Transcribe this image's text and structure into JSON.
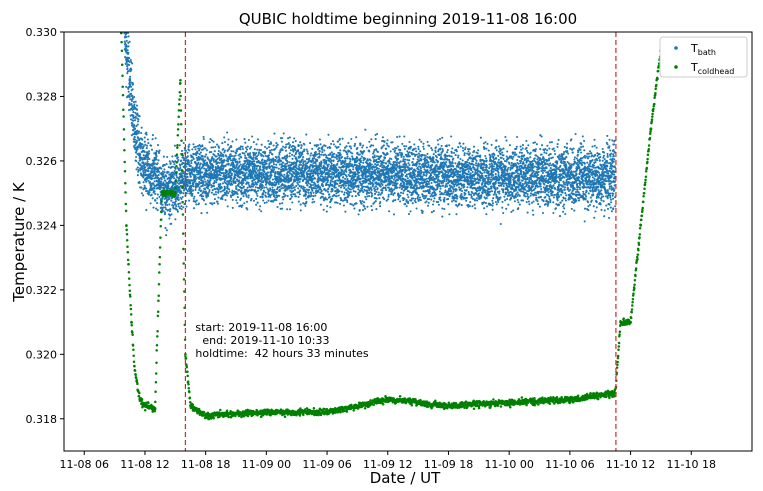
{
  "chart_data": {
    "type": "scatter",
    "title": "QUBIC holdtime beginning 2019-11-08 16:00",
    "xlabel": "Date / UT",
    "ylabel": "Temperature / K",
    "x_axis": {
      "type": "date",
      "min": "2019-11-08T04:00",
      "max": "2019-11-11T00:00",
      "ticks": [
        "2019-11-08T06:00",
        "2019-11-08T12:00",
        "2019-11-08T18:00",
        "2019-11-09T00:00",
        "2019-11-09T06:00",
        "2019-11-09T12:00",
        "2019-11-09T18:00",
        "2019-11-10T00:00",
        "2019-11-10T06:00",
        "2019-11-10T12:00",
        "2019-11-10T18:00"
      ],
      "tick_labels": [
        "11-08 06",
        "11-08 12",
        "11-08 18",
        "11-09 00",
        "11-09 06",
        "11-09 12",
        "11-09 18",
        "11-10 00",
        "11-10 06",
        "11-10 12",
        "11-10 18"
      ]
    },
    "y_axis": {
      "min": 0.317,
      "max": 0.33,
      "ticks": [
        0.318,
        0.32,
        0.322,
        0.324,
        0.326,
        0.328,
        0.33
      ],
      "tick_labels": [
        "0.318",
        "0.320",
        "0.322",
        "0.324",
        "0.326",
        "0.328",
        "0.330"
      ]
    },
    "grid": false,
    "legend": {
      "placement": "top-right"
    },
    "series": [
      {
        "name": "T",
        "name_sub": "bath",
        "color": "#1f77b4",
        "points": [
          [
            "2019-11-08T10:00",
            0.33
          ],
          [
            "2019-11-08T10:30",
            0.3285
          ],
          [
            "2019-11-08T11:00",
            0.327
          ],
          [
            "2019-11-08T11:30",
            0.3262
          ],
          [
            "2019-11-08T12:00",
            0.3258
          ],
          [
            "2019-11-08T13:00",
            0.3256
          ],
          [
            "2019-11-08T14:00",
            0.325
          ],
          [
            "2019-11-08T15:00",
            0.3252
          ],
          [
            "2019-11-08T16:00",
            0.3256
          ],
          [
            "2019-11-08T18:00",
            0.3256
          ],
          [
            "2019-11-09T00:00",
            0.3256
          ],
          [
            "2019-11-09T06:00",
            0.3256
          ],
          [
            "2019-11-09T12:00",
            0.3256
          ],
          [
            "2019-11-09T18:00",
            0.3255
          ],
          [
            "2019-11-10T00:00",
            0.3255
          ],
          [
            "2019-11-10T06:00",
            0.3255
          ],
          [
            "2019-11-10T10:30",
            0.3255
          ]
        ]
      },
      {
        "name": "T",
        "name_sub": "coldhead",
        "color": "#008000",
        "points": [
          [
            "2019-11-08T09:40",
            0.33
          ],
          [
            "2019-11-08T10:10",
            0.324
          ],
          [
            "2019-11-08T10:40",
            0.321
          ],
          [
            "2019-11-08T11:00",
            0.3195
          ],
          [
            "2019-11-08T11:30",
            0.3186
          ],
          [
            "2019-11-08T12:00",
            0.3184
          ],
          [
            "2019-11-08T13:00",
            0.3183
          ],
          [
            "2019-11-08T13:40",
            0.325
          ],
          [
            "2019-11-08T15:00",
            0.325
          ],
          [
            "2019-11-08T15:30",
            0.3285
          ],
          [
            "2019-11-08T16:00",
            0.32
          ],
          [
            "2019-11-08T16:30",
            0.3184
          ],
          [
            "2019-11-08T18:00",
            0.3181
          ],
          [
            "2019-11-09T00:00",
            0.3182
          ],
          [
            "2019-11-09T06:00",
            0.3182
          ],
          [
            "2019-11-09T12:00",
            0.3186
          ],
          [
            "2019-11-09T18:00",
            0.3184
          ],
          [
            "2019-11-10T00:00",
            0.3185
          ],
          [
            "2019-11-10T06:00",
            0.3186
          ],
          [
            "2019-11-10T10:30",
            0.3188
          ],
          [
            "2019-11-10T11:00",
            0.321
          ],
          [
            "2019-11-10T12:00",
            0.321
          ],
          [
            "2019-11-10T13:00",
            0.324
          ],
          [
            "2019-11-10T14:00",
            0.327
          ],
          [
            "2019-11-10T15:00",
            0.3295
          ]
        ]
      }
    ],
    "vlines": [
      {
        "x": "2019-11-08T16:00",
        "color": "#d62728"
      },
      {
        "x": "2019-11-10T10:33",
        "color": "#d62728"
      }
    ],
    "annotation": [
      "start: 2019-11-08 16:00",
      "  end: 2019-11-10 10:33",
      "holdtime:  42 hours 33 minutes"
    ]
  }
}
